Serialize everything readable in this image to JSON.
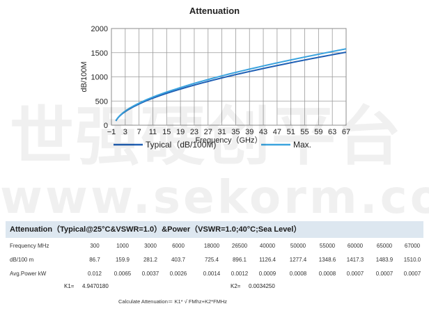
{
  "chart_data": {
    "type": "line",
    "title": "Attenuation",
    "xlabel": "Frequency（GHz）",
    "ylabel": "dB/100M",
    "xlim": [
      -1,
      67
    ],
    "ylim": [
      0,
      2000
    ],
    "x_ticks": [
      -1,
      3,
      7,
      11,
      15,
      19,
      23,
      27,
      31,
      35,
      39,
      43,
      47,
      51,
      55,
      59,
      63,
      67
    ],
    "y_ticks": [
      0,
      500,
      1000,
      1500,
      2000
    ],
    "grid": true,
    "legend_position": "bottom",
    "series": [
      {
        "name": "Typical（dB/100M)",
        "color": "#1f5fb4",
        "x": [
          0.3,
          1,
          3,
          6,
          18,
          26.5,
          40,
          50,
          55,
          60,
          65,
          67
        ],
        "y": [
          86.7,
          159.9,
          281.2,
          403.7,
          725.4,
          896.1,
          1126.4,
          1277.4,
          1348.6,
          1417.3,
          1483.9,
          1510.0
        ]
      },
      {
        "name": "Max.",
        "color": "#3aa3de",
        "x": [
          0.3,
          1,
          3,
          6,
          18,
          26.5,
          40,
          50,
          55,
          60,
          65,
          67
        ],
        "y": [
          90,
          166,
          292,
          420,
          755,
          935,
          1176,
          1335,
          1410,
          1482,
          1552,
          1580
        ]
      }
    ]
  },
  "watermark": {
    "chinese": "世强硬创平台",
    "url": "www.sekorm.com"
  },
  "table": {
    "header": "Attenuation（Typical@25°C&VSWR=1.0）&Power（VSWR=1.0;40°C;Sea Level）",
    "rows": [
      {
        "label": "Frequency MHz",
        "values": [
          "300",
          "1000",
          "3000",
          "6000",
          "18000",
          "26500",
          "40000",
          "50000",
          "55000",
          "60000",
          "65000",
          "67000"
        ]
      },
      {
        "label": "dB/100 m",
        "values": [
          "86.7",
          "159.9",
          "281.2",
          "403.7",
          "725.4",
          "896.1",
          "1126.4",
          "1277.4",
          "1348.6",
          "1417.3",
          "1483.9",
          "1510.0"
        ]
      },
      {
        "label": "Avg.Power kW",
        "values": [
          "0.012",
          "0.0065",
          "0.0037",
          "0.0026",
          "0.0014",
          "0.0012",
          "0.0009",
          "0.0008",
          "0.0008",
          "0.0007",
          "0.0007",
          "0.0007"
        ]
      }
    ],
    "k1_label": "K1=",
    "k1_value": "4.9470180",
    "k2_label": "K2=",
    "k2_value": "0.0034250",
    "formula": "Calculate Attenuation＝ K1* √ FMhz+K2*FMHz"
  }
}
